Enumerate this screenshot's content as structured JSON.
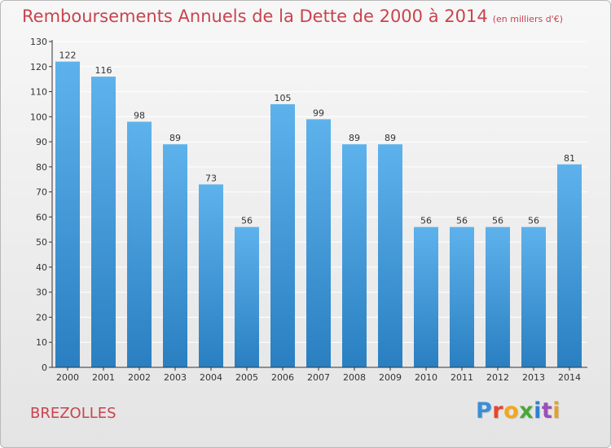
{
  "chart_title": "Remboursements Annuels de la Dette de 2000 à 2014",
  "chart_units": "(en milliers d'€)",
  "place_name": "BREZOLLES",
  "brand": {
    "letters": [
      "P",
      "r",
      "o",
      "x",
      "i",
      "t",
      "i"
    ],
    "colors": [
      "#3a8fd6",
      "#e8452c",
      "#f0a81c",
      "#4aa838",
      "#2f7fd0",
      "#9a4fb8",
      "#e0a22a"
    ]
  },
  "colors": {
    "bar_light": "#5eb2ec",
    "bar_dark": "#2a7fc1",
    "grid": "#ffffff",
    "axis": "#333333",
    "text": "#333333",
    "title": "#c8444e"
  },
  "chart_data": {
    "type": "bar",
    "title": "Remboursements Annuels de la Dette de 2000 à 2014",
    "subtitle": "(en milliers d'€)",
    "xlabel": "",
    "ylabel": "",
    "categories": [
      "2000",
      "2001",
      "2002",
      "2003",
      "2004",
      "2005",
      "2006",
      "2007",
      "2008",
      "2009",
      "2010",
      "2011",
      "2012",
      "2013",
      "2014"
    ],
    "values": [
      122,
      116,
      98,
      89,
      73,
      56,
      105,
      99,
      89,
      89,
      56,
      56,
      56,
      56,
      81
    ],
    "value_labels": [
      "122",
      "116",
      "98",
      "89",
      "73",
      "56",
      "105",
      "99",
      "89",
      "89",
      "56",
      "56",
      "56",
      "56",
      "81"
    ],
    "ylim": [
      0,
      130
    ],
    "yticks": [
      0,
      10,
      20,
      30,
      40,
      50,
      60,
      70,
      80,
      90,
      100,
      110,
      120,
      130
    ],
    "grid": true,
    "legend": "none"
  }
}
